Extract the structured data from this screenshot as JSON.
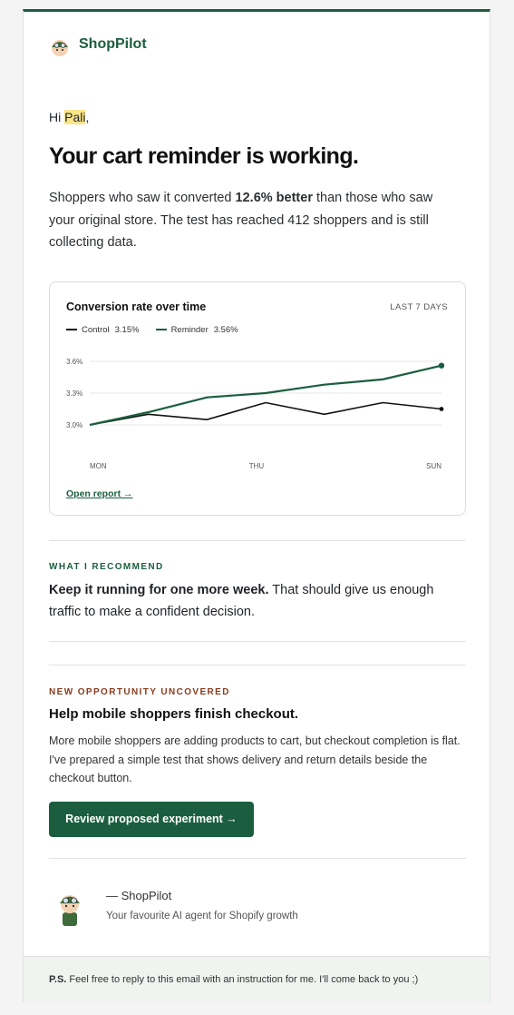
{
  "header": {
    "brand": "ShopPilot"
  },
  "greeting": {
    "prefix": "Hi ",
    "name": "Pali",
    "suffix": ","
  },
  "headline": "Your cart reminder is working.",
  "intro": {
    "before": "Shoppers who saw it converted ",
    "bold": "12.6% better",
    "after": " than those who saw your original store. The test has reached 412 shoppers and is still collecting data."
  },
  "chart_card": {
    "period": "LAST 7 DAYS",
    "link": "Open report →",
    "chart_data": {
      "type": "line",
      "title": "Conversion rate over time",
      "categories": [
        "MON",
        null,
        null,
        "THU",
        null,
        null,
        "SUN"
      ],
      "series": [
        {
          "name": "Control",
          "legend_value": "3.15%",
          "color": "#111111",
          "values": [
            3.0,
            3.1,
            3.05,
            3.21,
            3.1,
            3.21,
            3.15
          ]
        },
        {
          "name": "Reminder",
          "legend_value": "3.56%",
          "color": "#1b5e3f",
          "values": [
            3.0,
            3.12,
            3.26,
            3.3,
            3.38,
            3.43,
            3.56
          ]
        }
      ],
      "ylim": [
        2.85,
        3.65
      ],
      "yticks": [
        {
          "value": 3.0,
          "label": "3.0%"
        },
        {
          "value": 3.3,
          "label": "3.3%"
        },
        {
          "value": 3.6,
          "label": "3.6%"
        }
      ],
      "grid": true
    }
  },
  "recommendation": {
    "label": "WHAT I RECOMMEND",
    "bold": "Keep it running for one more week.",
    "text": " That should give us enough traffic to make a confident decision."
  },
  "opportunity": {
    "label": "NEW OPPORTUNITY UNCOVERED",
    "title": "Help mobile shoppers finish checkout.",
    "text": "More mobile shoppers are adding products to cart, but checkout completion is flat. I've prepared a simple test that shows delivery and return details beside the checkout button.",
    "button": "Review proposed experiment →"
  },
  "signature": {
    "name": "— ShopPilot",
    "tagline": "Your favourite AI agent for Shopify growth"
  },
  "footer": {
    "bold": "P.S.",
    "text": " Feel free to reply to this email with an instruction for me. I'll come back to you ;)"
  }
}
